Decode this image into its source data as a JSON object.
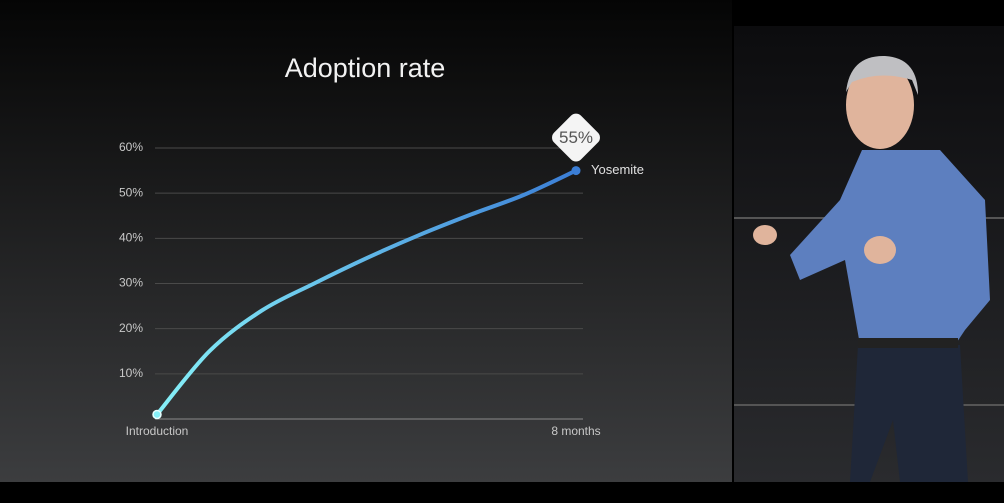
{
  "chart_data": {
    "type": "line",
    "title": "Adoption rate",
    "x": [
      0,
      1,
      2,
      3,
      4,
      5,
      6,
      7,
      8
    ],
    "xlim": [
      0,
      8
    ],
    "xticks": [
      {
        "value": 0,
        "label": "Introduction"
      },
      {
        "value": 8,
        "label": "8 months"
      }
    ],
    "ylim": [
      0,
      60
    ],
    "yticks": [
      {
        "value": 10,
        "label": "10%"
      },
      {
        "value": 20,
        "label": "20%"
      },
      {
        "value": 30,
        "label": "30%"
      },
      {
        "value": 40,
        "label": "40%"
      },
      {
        "value": 50,
        "label": "50%"
      },
      {
        "value": 60,
        "label": "60%"
      }
    ],
    "grid": true,
    "series": [
      {
        "name": "Yosemite",
        "gradient": [
          "#86f0f8",
          "#3b7ed6"
        ],
        "values": [
          1,
          15,
          24,
          30,
          35.6,
          40.7,
          45.3,
          49.6,
          55
        ],
        "value_labels": [
          null,
          null,
          null,
          null,
          null,
          null,
          null,
          null,
          "55%"
        ]
      }
    ]
  }
}
